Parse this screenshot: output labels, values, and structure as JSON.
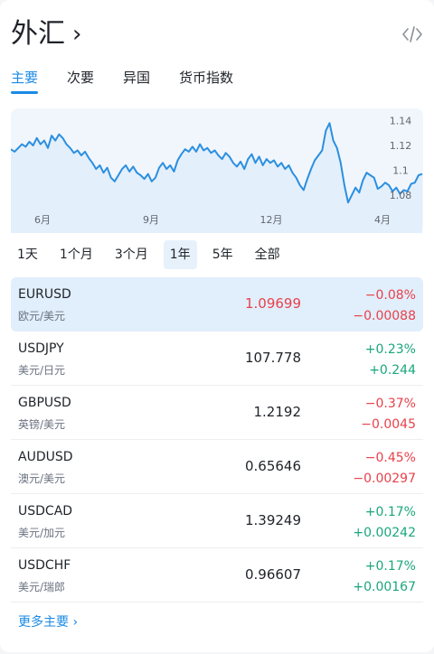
{
  "header": {
    "title": "外汇",
    "chevron": "›",
    "embed_icon": "code-embed-icon"
  },
  "tabs": [
    {
      "label": "主要",
      "active": true
    },
    {
      "label": "次要",
      "active": false
    },
    {
      "label": "异国",
      "active": false
    },
    {
      "label": "货币指数",
      "active": false
    }
  ],
  "chart_data": {
    "type": "area",
    "title": "",
    "xlabel": "",
    "ylabel": "",
    "x_ticks": [
      "6月",
      "9月",
      "12月",
      "4月"
    ],
    "y_ticks": [
      "1.14",
      "1.12",
      "1.1",
      "1.08"
    ],
    "ylim": [
      1.061,
      1.147
    ],
    "grid": false,
    "series": [
      {
        "values": [
          1.117,
          1.115,
          1.118,
          1.121,
          1.119,
          1.123,
          1.12,
          1.126,
          1.121,
          1.124,
          1.118,
          1.128,
          1.124,
          1.129,
          1.126,
          1.121,
          1.118,
          1.114,
          1.116,
          1.112,
          1.115,
          1.11,
          1.106,
          1.101,
          1.104,
          1.098,
          1.102,
          1.094,
          1.091,
          1.096,
          1.101,
          1.104,
          1.099,
          1.103,
          1.098,
          1.096,
          1.093,
          1.097,
          1.091,
          1.094,
          1.102,
          1.106,
          1.101,
          1.104,
          1.099,
          1.108,
          1.113,
          1.117,
          1.115,
          1.119,
          1.115,
          1.121,
          1.116,
          1.118,
          1.114,
          1.116,
          1.112,
          1.109,
          1.114,
          1.111,
          1.106,
          1.103,
          1.107,
          1.101,
          1.109,
          1.113,
          1.106,
          1.111,
          1.104,
          1.109,
          1.106,
          1.108,
          1.103,
          1.106,
          1.101,
          1.104,
          1.098,
          1.094,
          1.088,
          1.084,
          1.093,
          1.101,
          1.108,
          1.112,
          1.116,
          1.132,
          1.138,
          1.124,
          1.118,
          1.106,
          1.088,
          1.074,
          1.08,
          1.086,
          1.082,
          1.092,
          1.098,
          1.096,
          1.094,
          1.085,
          1.087,
          1.09,
          1.088,
          1.083,
          1.086,
          1.081,
          1.084,
          1.083,
          1.089,
          1.09,
          1.096,
          1.097
        ]
      }
    ],
    "line_color": "#2b8fe0",
    "fill_color": "#e3effb"
  },
  "ranges": [
    {
      "label": "1天",
      "active": false
    },
    {
      "label": "1个月",
      "active": false
    },
    {
      "label": "3个月",
      "active": false
    },
    {
      "label": "1年",
      "active": true
    },
    {
      "label": "5年",
      "active": false
    },
    {
      "label": "全部",
      "active": false
    }
  ],
  "pairs": [
    {
      "symbol": "EURUSD",
      "name": "欧元/美元",
      "price": "1.09699",
      "pct": "−0.08%",
      "abs": "−0.00088",
      "direction": "down",
      "price_highlight": true,
      "active": true
    },
    {
      "symbol": "USDJPY",
      "name": "美元/日元",
      "price": "107.778",
      "pct": "+0.23%",
      "abs": "+0.244",
      "direction": "up",
      "price_highlight": false,
      "active": false
    },
    {
      "symbol": "GBPUSD",
      "name": "英镑/美元",
      "price": "1.2192",
      "pct": "−0.37%",
      "abs": "−0.0045",
      "direction": "down",
      "price_highlight": false,
      "active": false
    },
    {
      "symbol": "AUDUSD",
      "name": "澳元/美元",
      "price": "0.65646",
      "pct": "−0.45%",
      "abs": "−0.00297",
      "direction": "down",
      "price_highlight": false,
      "active": false
    },
    {
      "symbol": "USDCAD",
      "name": "美元/加元",
      "price": "1.39249",
      "pct": "+0.17%",
      "abs": "+0.00242",
      "direction": "up",
      "price_highlight": false,
      "active": false
    },
    {
      "symbol": "USDCHF",
      "name": "美元/瑞郎",
      "price": "0.96607",
      "pct": "+0.17%",
      "abs": "+0.00167",
      "direction": "up",
      "price_highlight": false,
      "active": false
    }
  ],
  "more": {
    "label": "更多主要 ›"
  }
}
